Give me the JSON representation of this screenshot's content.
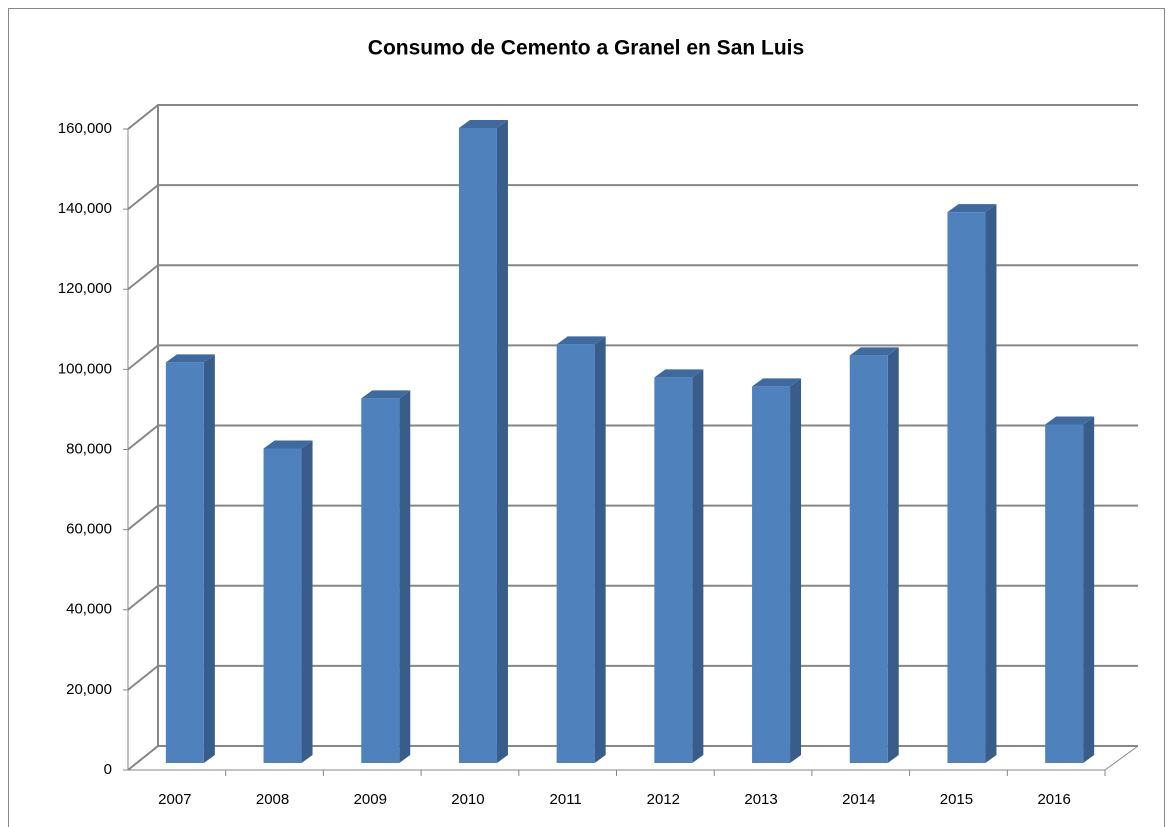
{
  "chart_data": {
    "type": "bar",
    "title": "Consumo de Cemento a Granel en San Luis",
    "categories": [
      "2007",
      "2008",
      "2009",
      "2010",
      "2011",
      "2012",
      "2013",
      "2014",
      "2015",
      "2016"
    ],
    "values": [
      100000,
      78500,
      91000,
      158500,
      104500,
      96250,
      94000,
      101750,
      137500,
      84500
    ],
    "color": "#4f81bd",
    "ylim": [
      0,
      160000
    ],
    "yticks": [
      {
        "value": 0,
        "label": "0"
      },
      {
        "value": 20000,
        "label": "20,000"
      },
      {
        "value": 40000,
        "label": "40,000"
      },
      {
        "value": 60000,
        "label": "60,000"
      },
      {
        "value": 80000,
        "label": "80,000"
      },
      {
        "value": 100000,
        "label": "100,000"
      },
      {
        "value": 120000,
        "label": "120,000"
      },
      {
        "value": 140000,
        "label": "140,000"
      },
      {
        "value": 160000,
        "label": "160,000"
      }
    ],
    "grid": true
  }
}
